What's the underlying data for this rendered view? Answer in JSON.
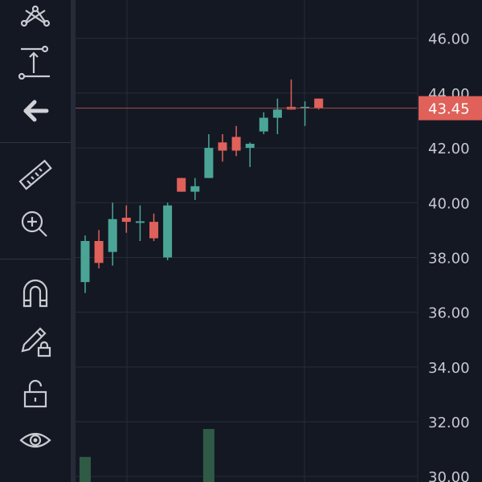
{
  "colors": {
    "background": "#141823",
    "grid": "#262c3a",
    "up": "#4aa597",
    "down": "#e0605a",
    "volume": "#2f5a45",
    "last_price_line": "#a0504c",
    "last_price_badge": "#e0605a",
    "axis_text": "#c7c9cf",
    "icon": "#c9cbd1"
  },
  "toolbar": {
    "tools": [
      {
        "name": "pattern-tool",
        "icon": "pattern-icon"
      },
      {
        "name": "measure-range",
        "icon": "price-range-icon"
      },
      {
        "name": "back",
        "icon": "arrow-left-icon"
      },
      {
        "name": "ruler",
        "icon": "ruler-icon"
      },
      {
        "name": "zoom-in",
        "icon": "zoom-in-icon"
      },
      {
        "name": "magnet",
        "icon": "magnet-icon"
      },
      {
        "name": "lock-drawings",
        "icon": "pencil-lock-icon"
      },
      {
        "name": "lock",
        "icon": "unlock-icon"
      },
      {
        "name": "visibility",
        "icon": "eye-icon"
      }
    ]
  },
  "chart_data": {
    "type": "candlestick",
    "y_axis": {
      "min": 29.8,
      "max": 47.4,
      "ticks": [
        "46.00",
        "44.00",
        "42.00",
        "40.00",
        "38.00",
        "36.00",
        "34.00",
        "32.00",
        "30.00"
      ],
      "tick_values": [
        46,
        44,
        42,
        40,
        38,
        36,
        34,
        32,
        30
      ],
      "side": "right"
    },
    "last_price": {
      "label": "43.45",
      "value": 43.45
    },
    "candles": [
      {
        "o": 37.1,
        "h": 38.8,
        "l": 36.7,
        "c": 38.6,
        "dir": "up"
      },
      {
        "o": 38.6,
        "h": 39.0,
        "l": 37.6,
        "c": 37.8,
        "dir": "down"
      },
      {
        "o": 38.2,
        "h": 40.0,
        "l": 37.7,
        "c": 39.4,
        "dir": "up"
      },
      {
        "o": 39.45,
        "h": 39.9,
        "l": 38.9,
        "c": 39.3,
        "dir": "down"
      },
      {
        "o": 39.32,
        "h": 39.9,
        "l": 38.6,
        "c": 39.28,
        "dir": "up"
      },
      {
        "o": 39.3,
        "h": 39.6,
        "l": 38.6,
        "c": 38.7,
        "dir": "down"
      },
      {
        "o": 38.0,
        "h": 40.0,
        "l": 37.9,
        "c": 39.9,
        "dir": "up"
      },
      {
        "o": 40.9,
        "h": 40.9,
        "l": 40.4,
        "c": 40.4,
        "dir": "down"
      },
      {
        "o": 40.4,
        "h": 40.9,
        "l": 40.1,
        "c": 40.6,
        "dir": "up"
      },
      {
        "o": 40.9,
        "h": 42.5,
        "l": 40.9,
        "c": 42.0,
        "dir": "up"
      },
      {
        "o": 42.2,
        "h": 42.5,
        "l": 41.5,
        "c": 41.9,
        "dir": "down"
      },
      {
        "o": 42.4,
        "h": 42.8,
        "l": 41.7,
        "c": 41.9,
        "dir": "down"
      },
      {
        "o": 42.0,
        "h": 42.2,
        "l": 41.3,
        "c": 42.15,
        "dir": "up"
      },
      {
        "o": 42.6,
        "h": 43.3,
        "l": 42.5,
        "c": 43.1,
        "dir": "up"
      },
      {
        "o": 43.1,
        "h": 43.8,
        "l": 42.5,
        "c": 43.4,
        "dir": "up"
      },
      {
        "o": 43.5,
        "h": 44.5,
        "l": 43.4,
        "c": 43.4,
        "dir": "down"
      },
      {
        "o": 43.45,
        "h": 43.7,
        "l": 42.8,
        "c": 43.5,
        "dir": "up"
      },
      {
        "o": 43.8,
        "h": 43.8,
        "l": 43.4,
        "c": 43.45,
        "dir": "down"
      }
    ],
    "volume": [
      {
        "index": 0,
        "value": 0.26
      },
      {
        "index": 9,
        "value": 0.55
      }
    ]
  }
}
